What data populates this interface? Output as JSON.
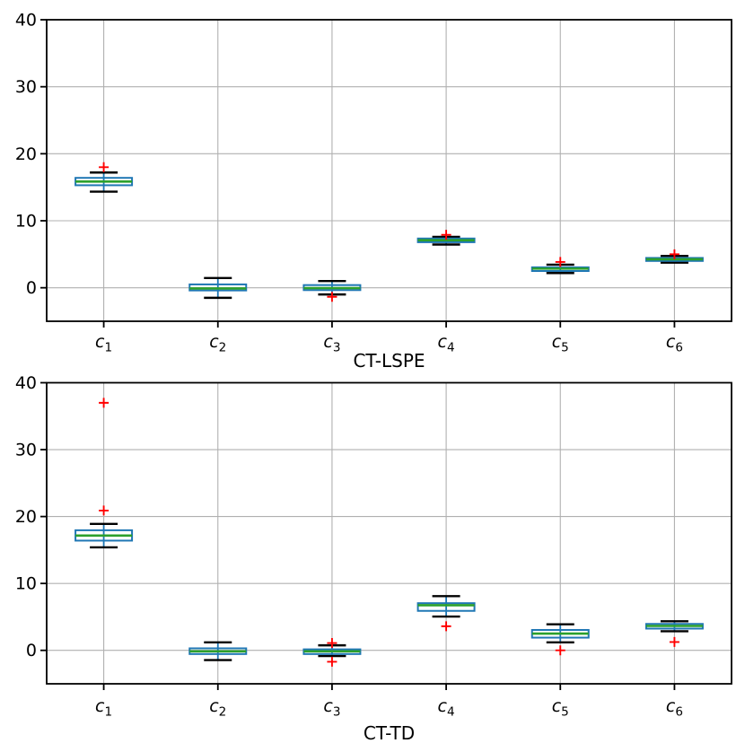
{
  "figure": {
    "background": "#ffffff"
  },
  "colors": {
    "box": "#1f77b4",
    "whisker": "#1f77b4",
    "cap": "#000000",
    "median": "#2ca02c",
    "flier": "#ff0000",
    "grid": "#b0b0b0",
    "spine": "#000000",
    "text": "#000000"
  },
  "chart_data": [
    {
      "type": "box",
      "title": "",
      "xlabel": "CT-LSPE",
      "ylabel": "",
      "grid": true,
      "ylim": [
        -5,
        40
      ],
      "yticks": [
        0,
        10,
        20,
        30,
        40
      ],
      "flier_marker": "+",
      "categories": [
        "c1",
        "c2",
        "c3",
        "c4",
        "c5",
        "c6"
      ],
      "boxes": [
        {
          "category": "c1",
          "whislo": 14.35,
          "q1": 15.3,
          "med": 15.85,
          "q3": 16.4,
          "whishi": 17.2,
          "fliers": [
            18.0
          ]
        },
        {
          "category": "c2",
          "whislo": -1.5,
          "q1": -0.4,
          "med": -0.1,
          "q3": 0.5,
          "whishi": 1.45,
          "fliers": []
        },
        {
          "category": "c3",
          "whislo": -1.0,
          "q1": -0.35,
          "med": -0.05,
          "q3": 0.4,
          "whishi": 1.0,
          "fliers": [
            -1.35
          ]
        },
        {
          "category": "c4",
          "whislo": 6.45,
          "q1": 6.8,
          "med": 7.1,
          "q3": 7.35,
          "whishi": 7.6,
          "fliers": [
            7.9
          ]
        },
        {
          "category": "c5",
          "whislo": 2.2,
          "q1": 2.5,
          "med": 2.85,
          "q3": 3.05,
          "whishi": 3.45,
          "fliers": [
            3.85
          ]
        },
        {
          "category": "c6",
          "whislo": 3.75,
          "q1": 4.0,
          "med": 4.25,
          "q3": 4.45,
          "whishi": 4.75,
          "fliers": [
            5.0
          ]
        }
      ]
    },
    {
      "type": "box",
      "title": "",
      "xlabel": "CT-TD",
      "ylabel": "",
      "grid": true,
      "ylim": [
        -5,
        40
      ],
      "yticks": [
        0,
        10,
        20,
        30,
        40
      ],
      "flier_marker": "+",
      "categories": [
        "c1",
        "c2",
        "c3",
        "c4",
        "c5",
        "c6"
      ],
      "boxes": [
        {
          "category": "c1",
          "whislo": 15.4,
          "q1": 16.4,
          "med": 17.15,
          "q3": 17.95,
          "whishi": 18.9,
          "fliers": [
            20.9,
            37.0
          ]
        },
        {
          "category": "c2",
          "whislo": -1.45,
          "q1": -0.55,
          "med": -0.15,
          "q3": 0.3,
          "whishi": 1.2,
          "fliers": []
        },
        {
          "category": "c3",
          "whislo": -0.85,
          "q1": -0.55,
          "med": -0.15,
          "q3": 0.15,
          "whishi": 0.75,
          "fliers": [
            1.1,
            -1.7
          ]
        },
        {
          "category": "c4",
          "whislo": 5.05,
          "q1": 5.9,
          "med": 6.75,
          "q3": 7.05,
          "whishi": 8.1,
          "fliers": [
            3.6
          ]
        },
        {
          "category": "c5",
          "whislo": 1.2,
          "q1": 1.9,
          "med": 2.5,
          "q3": 3.05,
          "whishi": 3.9,
          "fliers": [
            0.0
          ]
        },
        {
          "category": "c6",
          "whislo": 2.85,
          "q1": 3.25,
          "med": 3.65,
          "q3": 3.95,
          "whishi": 4.35,
          "fliers": [
            1.25
          ]
        }
      ]
    }
  ]
}
